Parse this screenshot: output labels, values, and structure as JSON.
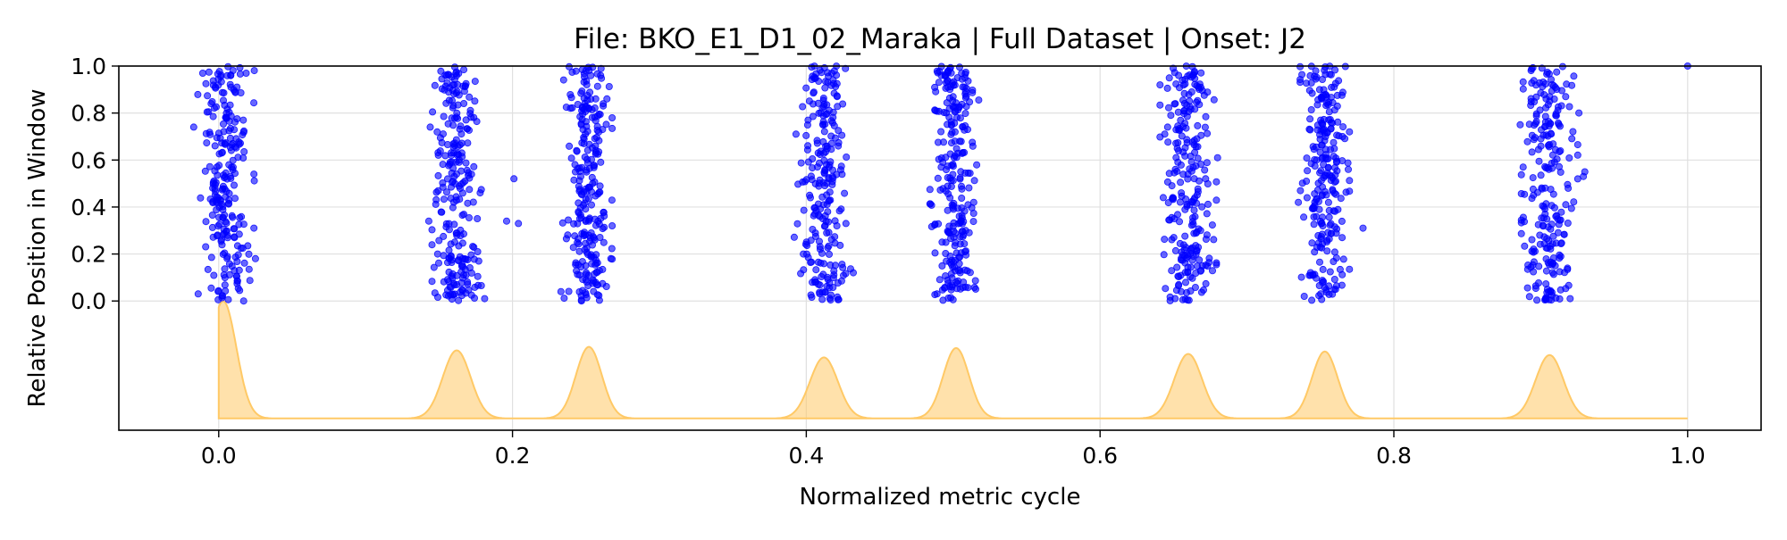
{
  "chart_data": {
    "type": "scatter",
    "title": "File: BKO_E1_D1_02_Maraka | Full Dataset | Onset: J2",
    "xlabel": "Normalized metric cycle",
    "ylabel": "Relative Position in Window",
    "xlim": [
      -0.068,
      1.05
    ],
    "ylim": [
      -0.55,
      1.0
    ],
    "x_ticks": [
      0.0,
      0.2,
      0.4,
      0.6,
      0.8,
      1.0
    ],
    "x_tick_labels": [
      "0.0",
      "0.2",
      "0.4",
      "0.6",
      "0.8",
      "1.0"
    ],
    "y_ticks": [
      0.0,
      0.2,
      0.4,
      0.6,
      0.8,
      1.0
    ],
    "y_tick_labels": [
      "0.0",
      "0.2",
      "0.4",
      "0.6",
      "0.8",
      "1.0"
    ],
    "grid": true,
    "colors": {
      "points": "#0000ff",
      "density": "#ffc966",
      "grid": "#e0e0e0"
    },
    "series": [
      {
        "type": "scatter",
        "clusters": [
          {
            "center": 0.005,
            "spread": 0.008,
            "count": 230,
            "outliers": [
              [
                -0.017,
                0.74
              ],
              [
                -0.014,
                0.03
              ],
              [
                0.024,
                0.54
              ],
              [
                0.024,
                0.31
              ],
              [
                0.025,
                0.18
              ],
              [
                0.017,
                0.0
              ]
            ]
          },
          {
            "center": 0.162,
            "spread": 0.007,
            "count": 240,
            "outliers": [
              [
                0.144,
                0.74
              ],
              [
                0.143,
                0.34
              ],
              [
                0.178,
                0.46
              ],
              [
                0.177,
                0.17
              ],
              [
                0.201,
                0.52
              ],
              [
                0.196,
                0.34
              ],
              [
                0.204,
                0.33
              ],
              [
                0.181,
                0.01
              ]
            ]
          },
          {
            "center": 0.251,
            "spread": 0.007,
            "count": 250,
            "outliers": [
              [
                0.267,
                0.18
              ],
              [
                0.233,
                0.04
              ]
            ]
          },
          {
            "center": 0.411,
            "spread": 0.008,
            "count": 230,
            "outliers": [
              [
                0.398,
                0.2
              ],
              [
                0.432,
                0.12
              ],
              [
                0.427,
                0.33
              ],
              [
                0.393,
                0.71
              ]
            ]
          },
          {
            "center": 0.501,
            "spread": 0.007,
            "count": 250,
            "outliers": [
              [
                0.514,
                0.42
              ],
              [
                0.489,
                0.03
              ]
            ]
          },
          {
            "center": 0.66,
            "spread": 0.008,
            "count": 240,
            "outliers": [
              [
                0.643,
                0.44
              ],
              [
                0.68,
                0.61
              ],
              [
                0.646,
                0.74
              ]
            ]
          },
          {
            "center": 0.753,
            "spread": 0.007,
            "count": 240,
            "outliers": [
              [
                0.735,
                0.42
              ],
              [
                0.779,
                0.31
              ],
              [
                0.769,
                0.56
              ],
              [
                0.739,
                0.02
              ]
            ]
          },
          {
            "center": 0.906,
            "spread": 0.008,
            "count": 230,
            "outliers": [
              [
                0.888,
                0.57
              ],
              [
                0.929,
                0.53
              ],
              [
                0.93,
                0.55
              ],
              [
                0.886,
                0.75
              ],
              [
                0.926,
                0.8
              ],
              [
                0.92,
                0.01
              ]
            ]
          }
        ],
        "extra_points": [
          [
            1.0,
            1.0
          ]
        ]
      },
      {
        "type": "area",
        "baseline": -0.5,
        "x_range": [
          0.0,
          1.0
        ],
        "peaks": [
          {
            "x": 0.003,
            "y": 0.0,
            "width": 0.009
          },
          {
            "x": 0.162,
            "y": -0.21,
            "width": 0.0095
          },
          {
            "x": 0.252,
            "y": -0.195,
            "width": 0.0088
          },
          {
            "x": 0.412,
            "y": -0.24,
            "width": 0.0095
          },
          {
            "x": 0.502,
            "y": -0.2,
            "width": 0.0088
          },
          {
            "x": 0.66,
            "y": -0.225,
            "width": 0.0095
          },
          {
            "x": 0.753,
            "y": -0.215,
            "width": 0.0088
          },
          {
            "x": 0.906,
            "y": -0.23,
            "width": 0.0095
          }
        ]
      }
    ]
  }
}
